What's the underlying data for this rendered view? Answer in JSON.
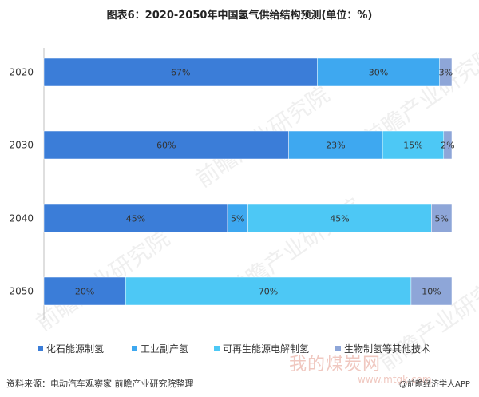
{
  "title": "图表6：2020-2050年中国氢气供给结构预测(单位：%)",
  "source": "资料来源：电动汽车观察家 前瞻产业研究院整理",
  "watermark": "前瞻产业研究院",
  "watermark_bottom": "我的煤炭网",
  "watermark_url": "www.mtgk.com",
  "brand": "@前瞻经济学人APP",
  "chart_data": {
    "type": "bar",
    "orientation": "horizontal",
    "stacked": true,
    "categories": [
      "2020",
      "2030",
      "2040",
      "2050"
    ],
    "series": [
      {
        "name": "化石能源制氢",
        "color": "#3b7dd8",
        "values": [
          67,
          60,
          45,
          20
        ]
      },
      {
        "name": "工业副产氢",
        "color": "#3ea8f0",
        "values": [
          30,
          23,
          5,
          0
        ]
      },
      {
        "name": "可再生能源电解制氢",
        "color": "#4dc8f5",
        "values": [
          0,
          15,
          45,
          70
        ]
      },
      {
        "name": "生物制氢等其他技术",
        "color": "#8ea6d8",
        "values": [
          3,
          2,
          5,
          10
        ]
      }
    ],
    "data_labels": [
      [
        "67%",
        "30%",
        "",
        "3%"
      ],
      [
        "60%",
        "23%",
        "15%",
        "2%"
      ],
      [
        "45%",
        "5%",
        "45%",
        "5%"
      ],
      [
        "20%",
        "",
        "70%",
        "10%"
      ]
    ],
    "xlim": [
      0,
      100
    ],
    "legend_position": "bottom",
    "grid": false
  }
}
